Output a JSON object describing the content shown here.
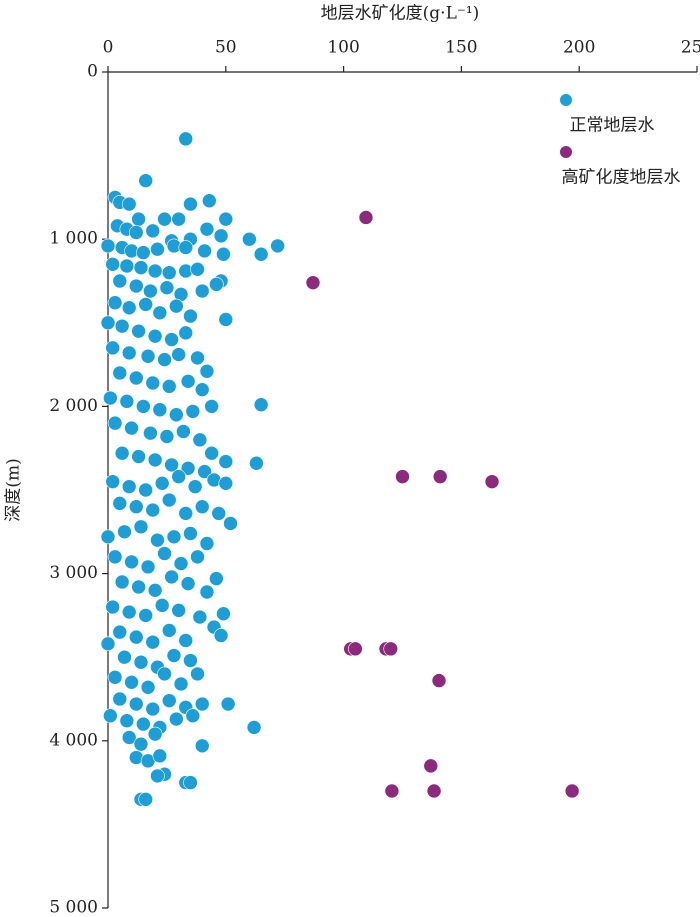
{
  "chart_data": {
    "type": "scatter",
    "x_label": "地层水矿化度(g·L⁻¹)",
    "y_label": "深度(m)",
    "xlim": [
      0,
      250
    ],
    "xticks": [
      0,
      50,
      100,
      150,
      200,
      250
    ],
    "ylim": [
      0,
      5000
    ],
    "y_inverted": true,
    "yticks": [
      0,
      {
        "value": 1000,
        "label": "1 000"
      },
      {
        "value": 2000,
        "label": "2 000"
      },
      {
        "value": 3000,
        "label": "3 000"
      },
      {
        "value": 4000,
        "label": "4 000"
      },
      {
        "value": 5000,
        "label": "5 000"
      }
    ],
    "legend": "upper right",
    "series": [
      {
        "name": "正常地层水",
        "color": "#1d9ed6",
        "x": [
          33,
          16,
          3,
          5,
          9,
          35,
          43,
          13,
          24,
          30,
          50,
          4,
          8,
          12,
          19,
          42,
          35,
          48,
          27,
          60,
          72,
          65,
          0,
          6,
          10,
          15,
          21,
          28,
          33,
          41,
          49,
          48,
          46,
          33,
          2,
          8,
          14,
          20,
          26,
          38,
          5,
          12,
          18,
          25,
          31,
          40,
          3,
          9,
          16,
          22,
          29,
          35,
          50,
          0,
          6,
          13,
          20,
          27,
          33,
          2,
          9,
          17,
          24,
          30,
          38,
          42,
          5,
          12,
          19,
          26,
          34,
          40,
          1,
          8,
          15,
          22,
          29,
          36,
          44,
          65,
          3,
          10,
          18,
          25,
          32,
          39,
          44,
          50,
          63,
          6,
          13,
          20,
          27,
          34,
          41,
          2,
          9,
          16,
          23,
          30,
          37,
          45,
          50,
          5,
          12,
          19,
          26,
          33,
          40,
          47,
          52,
          0,
          7,
          14,
          21,
          28,
          35,
          42,
          3,
          10,
          17,
          24,
          31,
          38,
          46,
          6,
          13,
          20,
          27,
          34,
          42,
          2,
          9,
          16,
          23,
          30,
          39,
          49,
          45,
          48,
          5,
          12,
          19,
          26,
          33,
          0,
          7,
          14,
          21,
          28,
          35,
          38,
          3,
          10,
          17,
          24,
          31,
          5,
          12,
          19,
          26,
          33,
          40,
          51,
          62,
          1,
          8,
          15,
          22,
          29,
          36,
          9,
          14,
          20,
          40,
          12,
          17,
          22,
          24,
          21,
          33,
          35,
          14,
          16
        ],
        "values": [
          400,
          650,
          750,
          780,
          790,
          790,
          770,
          880,
          880,
          880,
          880,
          920,
          940,
          960,
          950,
          940,
          1000,
          980,
          1010,
          1000,
          1040,
          1090,
          1040,
          1050,
          1070,
          1080,
          1060,
          1040,
          1050,
          1070,
          1090,
          1250,
          1270,
          1190,
          1150,
          1160,
          1170,
          1190,
          1200,
          1180,
          1250,
          1280,
          1310,
          1290,
          1330,
          1310,
          1380,
          1410,
          1390,
          1440,
          1400,
          1460,
          1480,
          1500,
          1520,
          1550,
          1580,
          1600,
          1560,
          1650,
          1680,
          1700,
          1720,
          1690,
          1710,
          1790,
          1800,
          1830,
          1860,
          1880,
          1850,
          1900,
          1950,
          1970,
          2000,
          2020,
          2050,
          2030,
          2000,
          1990,
          2100,
          2130,
          2160,
          2180,
          2150,
          2200,
          2280,
          2330,
          2340,
          2280,
          2300,
          2320,
          2350,
          2370,
          2390,
          2450,
          2480,
          2500,
          2460,
          2420,
          2480,
          2440,
          2460,
          2580,
          2600,
          2620,
          2560,
          2640,
          2600,
          2640,
          2700,
          2780,
          2750,
          2720,
          2800,
          2780,
          2760,
          2820,
          2900,
          2930,
          2960,
          2880,
          2940,
          2900,
          3030,
          3050,
          3080,
          3100,
          3020,
          3060,
          3110,
          3200,
          3230,
          3250,
          3190,
          3220,
          3260,
          3240,
          3320,
          3370,
          3350,
          3380,
          3410,
          3340,
          3400,
          3420,
          3500,
          3530,
          3560,
          3490,
          3520,
          3600,
          3620,
          3650,
          3680,
          3600,
          3660,
          3750,
          3780,
          3810,
          3760,
          3800,
          3780,
          3780,
          3920,
          3850,
          3880,
          3900,
          3920,
          3870,
          3850,
          3980,
          4020,
          3960,
          4030,
          4100,
          4120,
          4090,
          4200,
          4210,
          4250,
          4250,
          4350,
          4350
        ]
      },
      {
        "name": "高矿化度地层水",
        "color": "#8c2a7e",
        "x": [
          109.5,
          87,
          125,
          141,
          163,
          103,
          105,
          118,
          120,
          140.5,
          137,
          120.5,
          138.4,
          197
        ],
        "values": [
          870,
          1260,
          2420,
          2420,
          2450,
          3450,
          3450,
          3450,
          3450,
          3640,
          4150,
          4300,
          4300,
          4300
        ]
      }
    ]
  }
}
